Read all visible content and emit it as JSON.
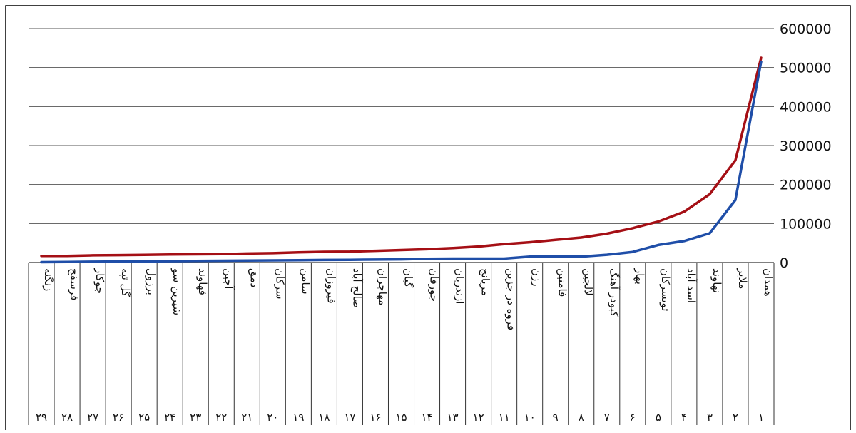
{
  "chart_data": {
    "type": "line",
    "title": "",
    "xlabel": "",
    "ylabel": "",
    "ylim": [
      0,
      600000
    ],
    "yticks": [
      "0",
      "100000",
      "200000",
      "300000",
      "400000",
      "500000",
      "600000"
    ],
    "grid": true,
    "categories": [
      "همدان",
      "ملایر",
      "نهاوند",
      "اسد آباد",
      "تویسرکان",
      "بهار",
      "کبودر آهنگ",
      "لالجین",
      "فامنین",
      "رزن",
      "قروه در جزین",
      "مریانج",
      "ازندریان",
      "جورقان",
      "گیان",
      "مهاجران",
      "صالح آباد",
      "فیروزان",
      "سامن",
      "سرکان",
      "دمق",
      "آجین",
      "قهاوند",
      "شیرین سو",
      "برزول",
      "گل تپه",
      "جوکار",
      "فرسفج",
      "زنگنه"
    ],
    "ranks": [
      "۱",
      "۲",
      "۳",
      "۴",
      "۵",
      "۶",
      "۷",
      "۸",
      "۹",
      "۱۰",
      "۱۱",
      "۱۲",
      "۱۳",
      "۱۴",
      "۱۵",
      "۱۶",
      "۱۷",
      "۱۸",
      "۱۹",
      "۲۰",
      "۲۱",
      "۲۲",
      "۲۳",
      "۲۴",
      "۲۵",
      "۲۶",
      "۲۷",
      "۲۸",
      "۲۹"
    ],
    "series": [
      {
        "color": "#a50f15",
        "values": [
          525000,
          262000,
          175000,
          130000,
          105000,
          88000,
          74000,
          64000,
          58000,
          52000,
          47000,
          41000,
          37000,
          34000,
          32000,
          30000,
          28000,
          27500,
          26000,
          24000,
          23000,
          21500,
          21000,
          20500,
          19500,
          19000,
          18500,
          17000,
          17000
        ]
      },
      {
        "color": "#1f4ea8",
        "values": [
          515000,
          160000,
          75000,
          55000,
          45000,
          27000,
          20000,
          15000,
          15000,
          15000,
          10000,
          10000,
          10000,
          9500,
          8000,
          7500,
          7000,
          6500,
          6000,
          5500,
          5000,
          4500,
          4000,
          3500,
          3000,
          2500,
          2000,
          1500,
          1000
        ]
      }
    ]
  }
}
